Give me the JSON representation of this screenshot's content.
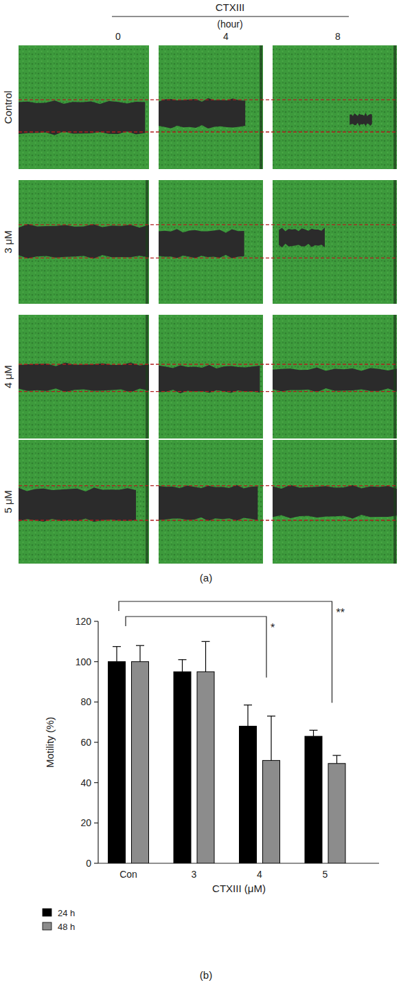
{
  "panel_a": {
    "title": "CTXIII",
    "subtitle": "(hour)",
    "columns": [
      "0",
      "4",
      "8"
    ],
    "rows": [
      "Control",
      "3 μM",
      "4 μM",
      "5 μM"
    ],
    "label": "(a)"
  },
  "chart_data": {
    "type": "bar",
    "caption": "(b)",
    "y_label": "Motility (%)",
    "x_label": "CTXIII (μM)",
    "categories": [
      "Con",
      "3",
      "4",
      "5"
    ],
    "series": [
      {
        "name": "24 h",
        "color": "#000000",
        "values": [
          100,
          95,
          68,
          63
        ],
        "errors": [
          7.5,
          6,
          10.5,
          3
        ]
      },
      {
        "name": "48 h",
        "color": "#8c8c8c",
        "values": [
          100,
          95,
          51,
          49.5
        ],
        "errors": [
          8,
          15,
          22,
          4
        ]
      }
    ],
    "ylim": [
      0,
      120
    ],
    "yticks": [
      0,
      20,
      40,
      60,
      80,
      100,
      120
    ],
    "grid": false,
    "legend": "bottom-left",
    "annotations": [
      {
        "text": "*",
        "between": [
          "Con",
          "4"
        ]
      },
      {
        "text": "**",
        "between": [
          "Con",
          "5"
        ]
      }
    ]
  }
}
